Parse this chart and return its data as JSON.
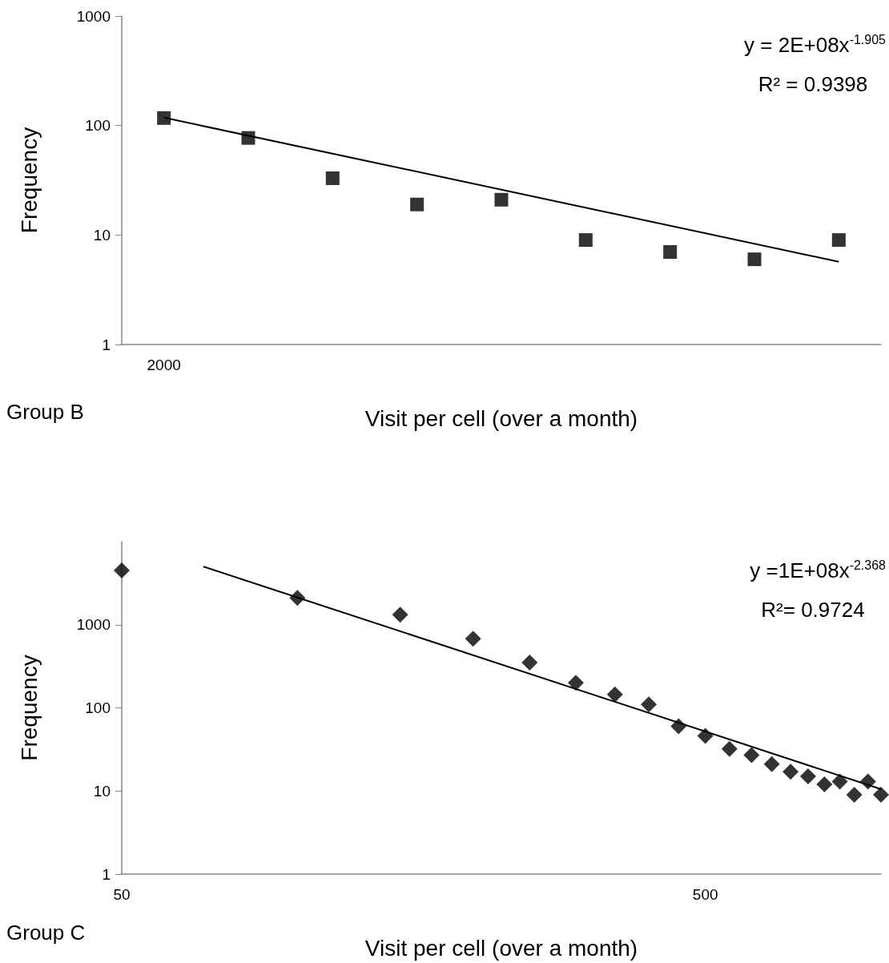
{
  "chart_data": [
    {
      "type": "scatter",
      "xlabel": "Visit per cell (over a month)",
      "ylabel": "Frequency",
      "log": "xy",
      "grid": false,
      "marker": "square",
      "categories": [
        "2000",
        null,
        null,
        null,
        null,
        null,
        null,
        null,
        null
      ],
      "ylim": [
        1,
        1000
      ],
      "yticks": [
        1,
        10,
        100,
        1000
      ],
      "annotations": [
        "y = 2E+08x$^{-1.905}$",
        "R² = 0.9398",
        "Group B"
      ],
      "series": [
        {
          "color": "#000000",
          "values": [
            117,
            77,
            33,
            19,
            21,
            9,
            7,
            6,
            9
          ]
        },
        {
          "type": "line",
          "color": "#000000",
          "marker": "none",
          "values": [
            118,
            null,
            null,
            null,
            null,
            null,
            null,
            null,
            5.7
          ]
        }
      ]
    },
    {
      "type": "scatter",
      "xlabel": "Visit per cell (over a month)",
      "ylabel": "Frequency",
      "log": "xy",
      "grid": false,
      "marker": "diamond",
      "xlim": [
        50,
        1000
      ],
      "xticks": [
        50,
        500
      ],
      "ylim": [
        1,
        10000
      ],
      "yticks": [
        1,
        10,
        100,
        1000
      ],
      "annotations": [
        "y =1E+08x$^{-2.368}$",
        "R²= 0.9724",
        "Group C"
      ],
      "series": [
        {
          "color": "#000000",
          "x": [
            50,
            100,
            150,
            200,
            250,
            300,
            350,
            400,
            450,
            500,
            550,
            600,
            650,
            700,
            750,
            800,
            850,
            900,
            950,
            1000
          ],
          "values": [
            4500,
            2100,
            1320,
            680,
            350,
            200,
            145,
            110,
            60,
            46,
            32,
            27,
            21,
            17,
            15,
            12,
            13,
            9,
            13,
            9
          ]
        },
        {
          "type": "line",
          "color": "#000000",
          "marker": "none",
          "x": [
            69,
            1000
          ],
          "values": [
            5000,
            10.5
          ]
        }
      ]
    }
  ]
}
